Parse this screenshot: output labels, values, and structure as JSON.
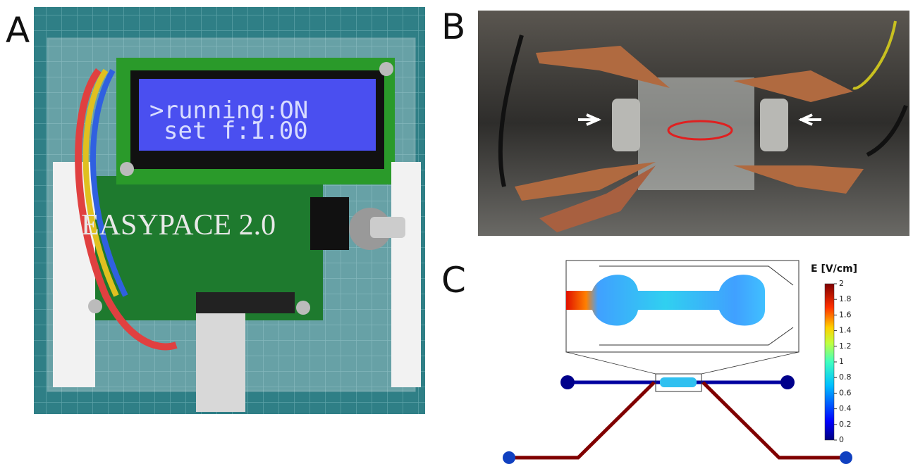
{
  "panels": {
    "a": {
      "label": "A",
      "lcd_lines": [
        ">running:ON",
        "set f:1.00"
      ],
      "logo": "EASYPACE 2.0"
    },
    "b": {
      "label": "B"
    },
    "c": {
      "label": "C",
      "colorbar": {
        "title": "E [V/cm]",
        "lim": [
          0,
          2
        ],
        "ticks": [
          0,
          0.2,
          0.4,
          0.6,
          0.8,
          1,
          1.2,
          1.4,
          1.6,
          1.8,
          2
        ]
      }
    }
  }
}
